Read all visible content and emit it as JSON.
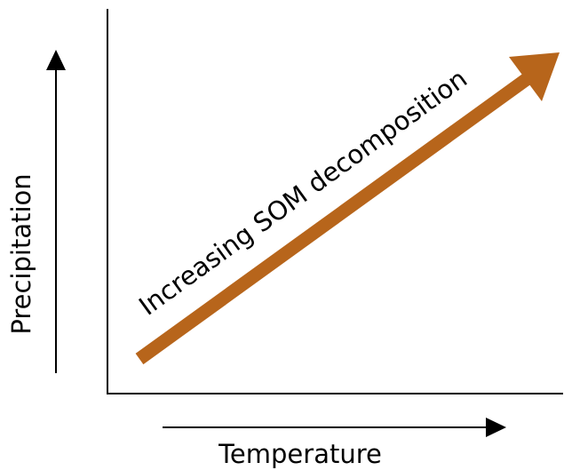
{
  "labels": {
    "x_axis": "Temperature",
    "y_axis": "Precipitation",
    "trend": "Increasing SOM decomposition"
  },
  "colors": {
    "trend_arrow": "#B7651B",
    "axes": "#000000",
    "background": "#ffffff"
  }
}
